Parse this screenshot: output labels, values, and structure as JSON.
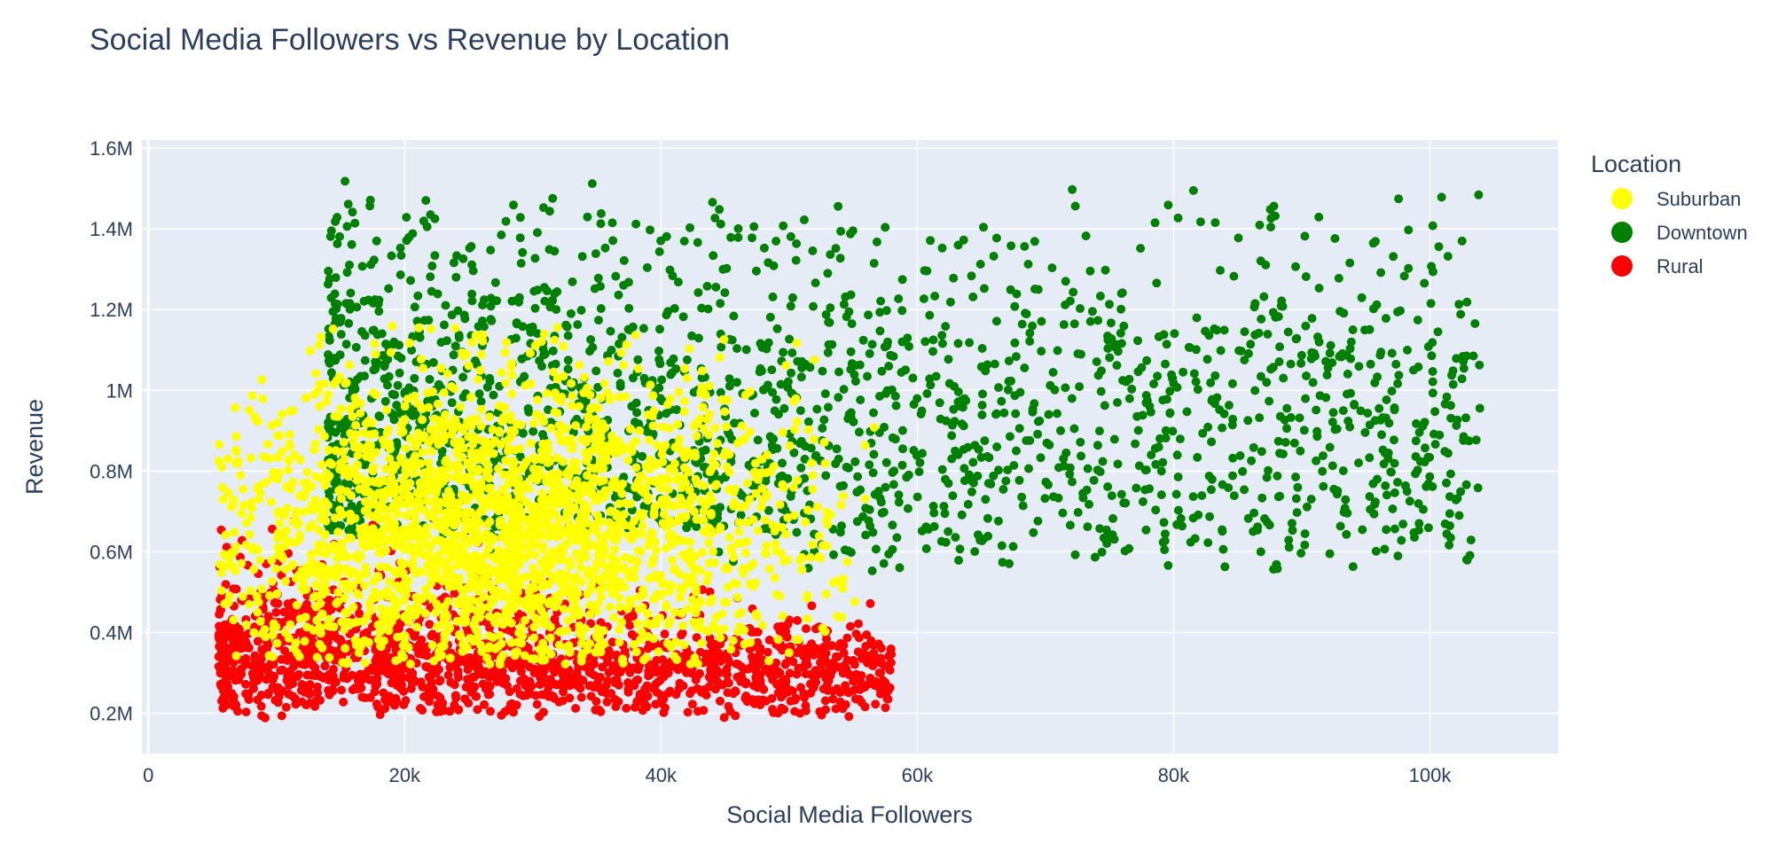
{
  "chart_data": {
    "type": "scatter",
    "title": "Social Media Followers vs Revenue by Location",
    "xlabel": "Social Media Followers",
    "ylabel": "Revenue",
    "xlim": [
      -500,
      110000
    ],
    "ylim": [
      100000,
      1620000
    ],
    "x_ticks": [
      {
        "value": 0,
        "label": "0"
      },
      {
        "value": 20000,
        "label": "20k"
      },
      {
        "value": 40000,
        "label": "40k"
      },
      {
        "value": 60000,
        "label": "60k"
      },
      {
        "value": 80000,
        "label": "80k"
      },
      {
        "value": 100000,
        "label": "100k"
      }
    ],
    "y_ticks": [
      {
        "value": 200000,
        "label": "0.2M"
      },
      {
        "value": 400000,
        "label": "0.4M"
      },
      {
        "value": 600000,
        "label": "0.6M"
      },
      {
        "value": 800000,
        "label": "0.8M"
      },
      {
        "value": 1000000,
        "label": "1M"
      },
      {
        "value": 1200000,
        "label": "1.2M"
      },
      {
        "value": 1400000,
        "label": "1.4M"
      },
      {
        "value": 1600000,
        "label": "1.6M"
      }
    ],
    "grid": true,
    "legend": {
      "title": "Location",
      "placement": "top-right, outside plot"
    },
    "series": [
      {
        "name": "Suburban",
        "color": "#ffff00",
        "x_range": [
          5500,
          57000
        ],
        "y_range": [
          320000,
          1160000
        ],
        "center": [
          27000,
          640000
        ],
        "approx_points": 2400
      },
      {
        "name": "Downtown",
        "color": "#008000",
        "x_range": [
          14000,
          104000
        ],
        "y_range": [
          440000,
          1530000
        ],
        "center": [
          55000,
          900000
        ],
        "approx_points": 2000
      },
      {
        "name": "Rural",
        "color": "#ff0000",
        "x_range": [
          5500,
          58000
        ],
        "y_range": [
          185000,
          850000
        ],
        "center": [
          28000,
          420000
        ],
        "approx_points": 1600
      }
    ],
    "draw_order": [
      "Downtown",
      "Rural",
      "Suburban"
    ],
    "plot_background": "#e5ecf6",
    "grid_color": "#ffffff"
  }
}
